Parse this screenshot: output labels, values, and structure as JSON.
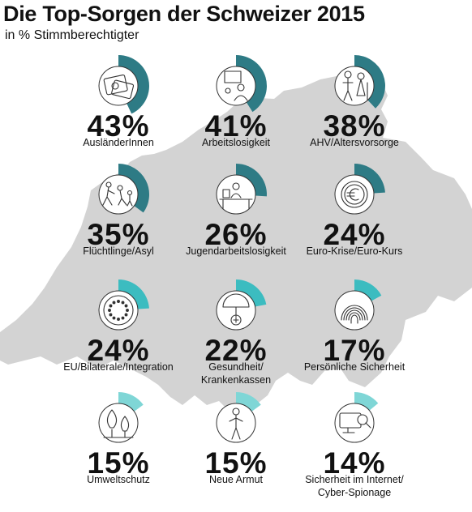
{
  "header": {
    "title": "Die Top-Sorgen der Schweizer 2015",
    "subtitle": "in % Stimmberechtigter"
  },
  "colors": {
    "dark": "#2e7b85",
    "light": "#3cbcc0",
    "pale": "#7fd6d6",
    "map": "#d3d3d3",
    "icon": "#333333"
  },
  "chart_data": {
    "type": "pie",
    "title": "Die Top-Sorgen der Schweizer 2015",
    "subtitle": "in % Stimmberechtigter",
    "unit": "%",
    "categories": [
      "AusländerInnen",
      "Arbeitslosigkeit",
      "AHV/Altersvorsorge",
      "Flüchtlinge/Asyl",
      "Jugendarbeitslosigkeit",
      "Euro-Krise/Euro-Kurs",
      "EU/Bilaterale/Integration",
      "Gesundheit/\nKrankenkassen",
      "Persönliche Sicherheit",
      "Umweltschutz",
      "Neue Armut",
      "Sicherheit im Internet/\nCyber-Spionage"
    ],
    "values": [
      43,
      41,
      38,
      35,
      26,
      24,
      24,
      22,
      17,
      15,
      15,
      14
    ],
    "labels": [
      "43%",
      "41%",
      "38%",
      "35%",
      "26%",
      "24%",
      "24%",
      "22%",
      "17%",
      "15%",
      "15%",
      "14%"
    ],
    "icons": [
      "passport-icon",
      "job-seeker-icon",
      "elderly-couple-icon",
      "refugees-icon",
      "desk-worker-icon",
      "euro-coin-icon",
      "eu-stars-icon",
      "health-cross-umbrella-icon",
      "fingerprint-icon",
      "trees-icon",
      "poor-person-icon",
      "computer-spy-icon"
    ],
    "wedge_colors": [
      "dark",
      "dark",
      "dark",
      "dark",
      "dark",
      "dark",
      "light",
      "light",
      "light",
      "pale",
      "pale",
      "pale"
    ]
  }
}
